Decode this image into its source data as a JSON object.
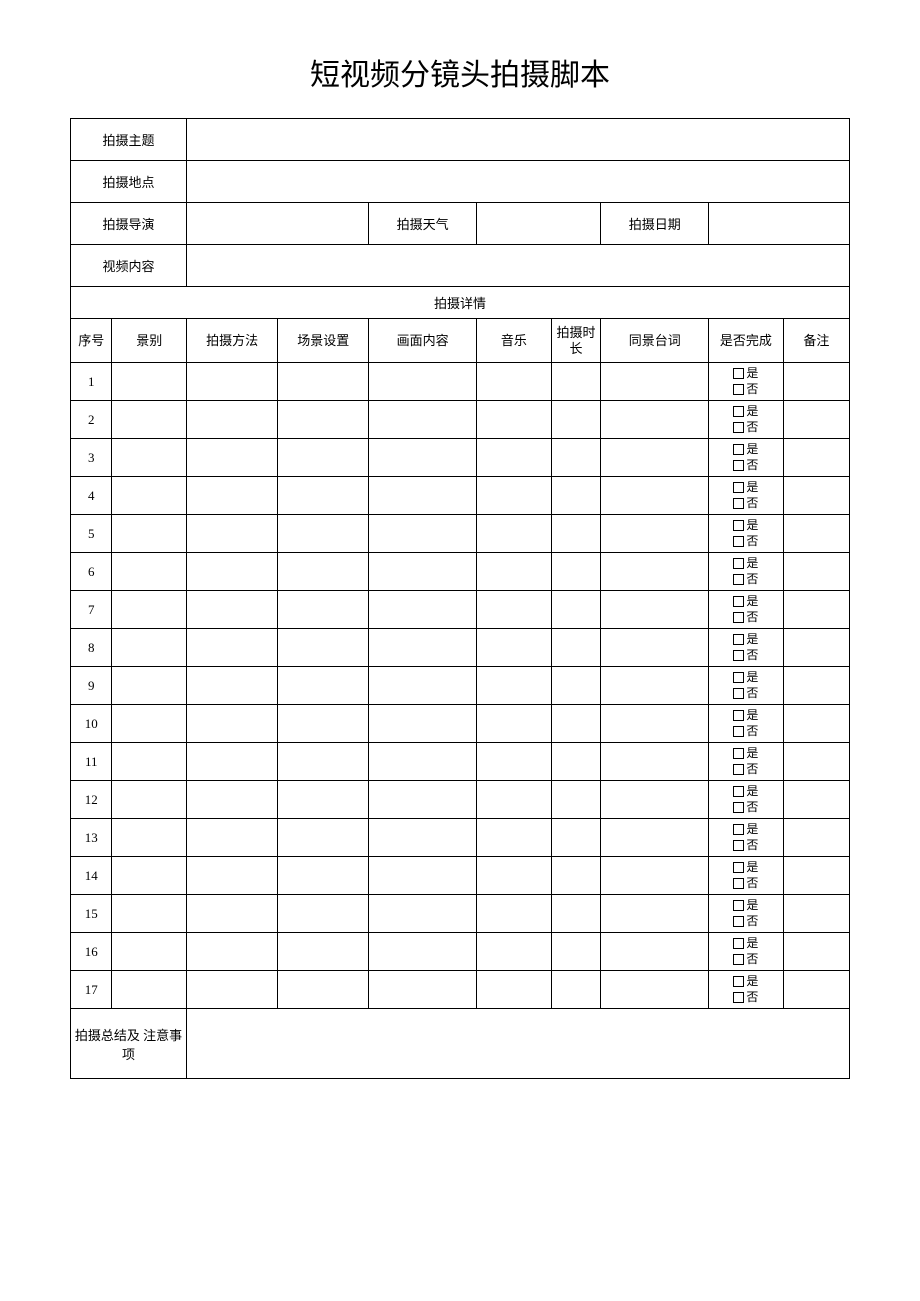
{
  "title": "短视频分镜头拍摄脚本",
  "header": {
    "theme_label": "拍摄主题",
    "theme_value": "",
    "location_label": "拍摄地点",
    "location_value": "",
    "director_label": "拍摄导演",
    "director_value": "",
    "weather_label": "拍摄天气",
    "weather_value": "",
    "date_label": "拍摄日期",
    "date_value": "",
    "content_label": "视频内容",
    "content_value": ""
  },
  "section_title": "拍摄详情",
  "columns": {
    "seq": "序号",
    "shot_type": "景别",
    "method": "拍摄方法",
    "scene": "场景设置",
    "frame": "画面内容",
    "music": "音乐",
    "duration": "拍摄时长",
    "dialogue": "同景台词",
    "done": "是否完成",
    "note": "备注"
  },
  "checkbox_labels": {
    "yes": "是",
    "no": "否"
  },
  "rows": [
    {
      "seq": "1"
    },
    {
      "seq": "2"
    },
    {
      "seq": "3"
    },
    {
      "seq": "4"
    },
    {
      "seq": "5"
    },
    {
      "seq": "6"
    },
    {
      "seq": "7"
    },
    {
      "seq": "8"
    },
    {
      "seq": "9"
    },
    {
      "seq": "10"
    },
    {
      "seq": "11"
    },
    {
      "seq": "12"
    },
    {
      "seq": "13"
    },
    {
      "seq": "14"
    },
    {
      "seq": "15"
    },
    {
      "seq": "16"
    },
    {
      "seq": "17"
    }
  ],
  "footer": {
    "summary_label": "拍摄总结及 注意事项",
    "summary_value": ""
  },
  "style": {
    "page_bg": "#ffffff",
    "border_color": "#000000",
    "title_fontsize": 30,
    "cell_fontsize": 13,
    "header_fontsize": 12,
    "col_widths_pct": [
      5,
      9,
      11,
      11,
      13,
      9,
      6,
      13,
      9,
      8
    ]
  }
}
